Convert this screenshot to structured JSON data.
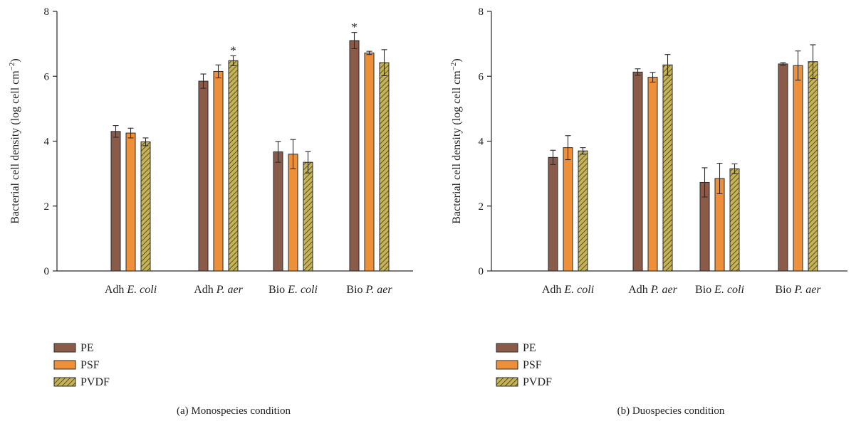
{
  "colors": {
    "PE": "#8b5b4a",
    "PSF": "#ee8f3a",
    "PVDF": "#c6b257",
    "stroke": "#2a2a2a"
  },
  "chart_data": [
    {
      "type": "bar",
      "title": "",
      "caption": "(a)  Monospecies condition",
      "categories": [
        {
          "prefix": "Adh ",
          "italic": "E. coli"
        },
        {
          "prefix": "Adh ",
          "italic": "P. aer"
        },
        {
          "prefix": "Bio ",
          "italic": "E. coli"
        },
        {
          "prefix": "Bio ",
          "italic": "P. aer"
        }
      ],
      "ylabel": "Bacterial cell density (log cell cm",
      "ylabel_sup": "−2",
      "ylabel_end": ")",
      "ylim": [
        0,
        8
      ],
      "yticks": [
        "0",
        "2",
        "4",
        "6",
        "8"
      ],
      "legend_position": "bottom-left",
      "grid": false,
      "series": [
        {
          "name": "PE",
          "values": [
            4.3,
            5.85,
            3.67,
            7.1
          ],
          "errors": [
            0.18,
            0.22,
            0.32,
            0.25
          ]
        },
        {
          "name": "PSF",
          "values": [
            4.25,
            6.15,
            3.6,
            6.72
          ],
          "errors": [
            0.15,
            0.2,
            0.45,
            0.05
          ]
        },
        {
          "name": "PVDF",
          "values": [
            3.98,
            6.48,
            3.35,
            6.42
          ],
          "errors": [
            0.12,
            0.15,
            0.33,
            0.4
          ]
        }
      ],
      "annotations": [
        {
          "text": "*",
          "series": "PVDF",
          "category_index": 1
        },
        {
          "text": "*",
          "series": "PE",
          "category_index": 3
        }
      ]
    },
    {
      "type": "bar",
      "title": "",
      "caption": "(b)  Duospecies condition",
      "categories": [
        {
          "prefix": "Adh ",
          "italic": "E. coli"
        },
        {
          "prefix": "Adh ",
          "italic": "P. aer"
        },
        {
          "prefix": "Bio ",
          "italic": "E. coli"
        },
        {
          "prefix": "Bio ",
          "italic": "P. aer"
        }
      ],
      "ylabel": "Bacterial cell density (log cell cm",
      "ylabel_sup": "−2",
      "ylabel_end": ")",
      "ylim": [
        0,
        8
      ],
      "yticks": [
        "0",
        "2",
        "4",
        "6",
        "8"
      ],
      "legend_position": "bottom-left",
      "grid": false,
      "series": [
        {
          "name": "PE",
          "values": [
            3.5,
            6.13,
            2.73,
            6.38
          ],
          "errors": [
            0.22,
            0.1,
            0.45,
            0.04
          ]
        },
        {
          "name": "PSF",
          "values": [
            3.8,
            5.97,
            2.85,
            6.33
          ],
          "errors": [
            0.37,
            0.15,
            0.47,
            0.45
          ]
        },
        {
          "name": "PVDF",
          "values": [
            3.7,
            6.35,
            3.15,
            6.45
          ],
          "errors": [
            0.1,
            0.32,
            0.15,
            0.52
          ]
        }
      ],
      "annotations": []
    }
  ]
}
